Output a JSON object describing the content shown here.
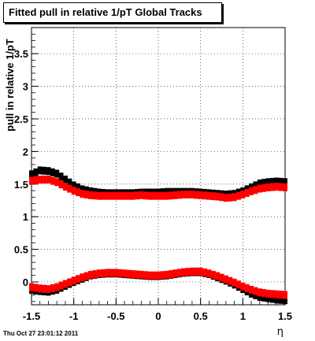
{
  "chart_data": {
    "type": "scatter",
    "title": "Fitted pull in relative 1/pT  Global Tracks",
    "xlabel": "η",
    "ylabel": "pull in relative 1/pT",
    "xlim": [
      -1.5,
      1.5
    ],
    "ylim": [
      -0.35,
      3.9
    ],
    "xticks": [
      "-1.5",
      "-1",
      "-0.5",
      "0",
      "0.5",
      "1",
      "1.5"
    ],
    "yticks": [
      "0",
      "0.5",
      "1",
      "1.5",
      "2",
      "2.5",
      "3",
      "3.5"
    ],
    "grid": true,
    "series": [
      {
        "color": "#000000",
        "x": [
          -1.5,
          -1.4,
          -1.3,
          -1.2,
          -1.1,
          -1.0,
          -0.9,
          -0.8,
          -0.7,
          -0.6,
          -0.5,
          -0.4,
          -0.3,
          -0.2,
          -0.1,
          0.0,
          0.1,
          0.2,
          0.3,
          0.4,
          0.5,
          0.6,
          0.7,
          0.8,
          0.9,
          1.0,
          1.1,
          1.2,
          1.3,
          1.4,
          1.5
        ],
        "y": [
          1.65,
          1.71,
          1.7,
          1.66,
          1.57,
          1.48,
          1.42,
          1.39,
          1.37,
          1.36,
          1.36,
          1.36,
          1.36,
          1.37,
          1.37,
          1.37,
          1.38,
          1.38,
          1.38,
          1.38,
          1.37,
          1.36,
          1.35,
          1.34,
          1.35,
          1.39,
          1.45,
          1.51,
          1.53,
          1.54,
          1.53
        ]
      },
      {
        "color": "#ff0000",
        "x": [
          -1.5,
          -1.4,
          -1.3,
          -1.2,
          -1.1,
          -1.0,
          -0.9,
          -0.8,
          -0.7,
          -0.6,
          -0.5,
          -0.4,
          -0.3,
          -0.2,
          -0.1,
          0.0,
          0.1,
          0.2,
          0.3,
          0.4,
          0.5,
          0.6,
          0.7,
          0.8,
          0.9,
          1.0,
          1.1,
          1.2,
          1.3,
          1.4,
          1.5
        ],
        "y": [
          1.55,
          1.57,
          1.57,
          1.53,
          1.46,
          1.4,
          1.35,
          1.33,
          1.32,
          1.32,
          1.32,
          1.32,
          1.32,
          1.33,
          1.32,
          1.32,
          1.32,
          1.33,
          1.34,
          1.34,
          1.33,
          1.32,
          1.31,
          1.29,
          1.3,
          1.34,
          1.39,
          1.43,
          1.45,
          1.46,
          1.45
        ]
      },
      {
        "color": "#000000",
        "x": [
          -1.5,
          -1.4,
          -1.3,
          -1.2,
          -1.1,
          -1.0,
          -0.9,
          -0.8,
          -0.7,
          -0.6,
          -0.5,
          -0.4,
          -0.3,
          -0.2,
          -0.1,
          0.0,
          0.1,
          0.2,
          0.3,
          0.4,
          0.5,
          0.6,
          0.7,
          0.8,
          0.9,
          1.0,
          1.1,
          1.2,
          1.3,
          1.4,
          1.5
        ],
        "y": [
          -0.12,
          -0.14,
          -0.15,
          -0.12,
          -0.06,
          0.0,
          0.05,
          0.1,
          0.12,
          0.13,
          0.13,
          0.12,
          0.11,
          0.1,
          0.09,
          0.09,
          0.1,
          0.12,
          0.14,
          0.15,
          0.15,
          0.12,
          0.07,
          0.02,
          -0.04,
          -0.11,
          -0.18,
          -0.23,
          -0.25,
          -0.27,
          -0.28
        ]
      },
      {
        "color": "#ff0000",
        "x": [
          -1.5,
          -1.4,
          -1.3,
          -1.2,
          -1.1,
          -1.0,
          -0.9,
          -0.8,
          -0.7,
          -0.6,
          -0.5,
          -0.4,
          -0.3,
          -0.2,
          -0.1,
          0.0,
          0.1,
          0.2,
          0.3,
          0.4,
          0.5,
          0.6,
          0.7,
          0.8,
          0.9,
          1.0,
          1.1,
          1.2,
          1.3,
          1.4,
          1.5
        ],
        "y": [
          -0.08,
          -0.1,
          -0.11,
          -0.08,
          -0.03,
          0.02,
          0.07,
          0.11,
          0.13,
          0.14,
          0.14,
          0.13,
          0.12,
          0.11,
          0.1,
          0.1,
          0.11,
          0.13,
          0.15,
          0.16,
          0.16,
          0.13,
          0.09,
          0.04,
          -0.01,
          -0.07,
          -0.12,
          -0.16,
          -0.18,
          -0.19,
          -0.2
        ]
      }
    ]
  },
  "footer": {
    "timestamp": "Thu Oct 27 23:01:12 2011"
  }
}
